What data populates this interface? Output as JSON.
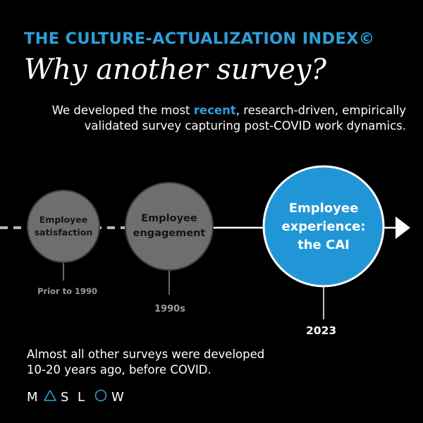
{
  "header": {
    "eyebrow": "THE CULTURE-ACTUALIZATION INDEX©",
    "title": "Why another survey?"
  },
  "intro": {
    "before": "We developed the most ",
    "highlight": "recent",
    "after": ", research-driven, empirically validated survey capturing post-COVID work dynamics."
  },
  "timeline": {
    "stages": [
      {
        "line1": "Employee",
        "line2": "satisfaction",
        "line3": "",
        "era": "Prior to 1990"
      },
      {
        "line1": "Employee",
        "line2": "engagement",
        "line3": "",
        "era": "1990s"
      },
      {
        "line1": "Employee",
        "line2": "experience:",
        "line3": "the CAI",
        "era": "2023"
      }
    ]
  },
  "outro": {
    "line1": "Almost all other surveys were developed",
    "line2": "10-20 years ago, before COVID."
  },
  "logo": {
    "text": "MASLOW",
    "l1": "M",
    "l3": "S",
    "l4": "L",
    "l6": "W"
  },
  "colors": {
    "accent": "#2e9fd9",
    "past_stage": "#6e6e6e",
    "past_text": "#1a1a1a",
    "muted_label": "#9a9a9a"
  }
}
